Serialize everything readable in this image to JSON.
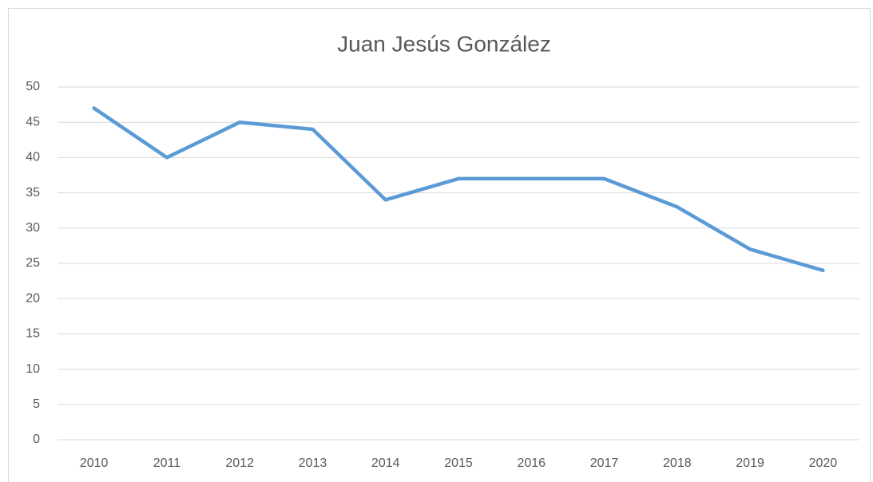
{
  "chart_data": {
    "type": "line",
    "title": "Juan Jesús González",
    "categories": [
      "2010",
      "2011",
      "2012",
      "2013",
      "2014",
      "2015",
      "2016",
      "2017",
      "2018",
      "2019",
      "2020"
    ],
    "values": [
      47,
      40,
      45,
      44,
      34,
      37,
      37,
      37,
      33,
      27,
      24
    ],
    "color": "#5b9bd5",
    "ylim": [
      0,
      50
    ],
    "yticks": [
      0,
      5,
      10,
      15,
      20,
      25,
      30,
      35,
      40,
      45,
      50
    ],
    "grid": true
  }
}
